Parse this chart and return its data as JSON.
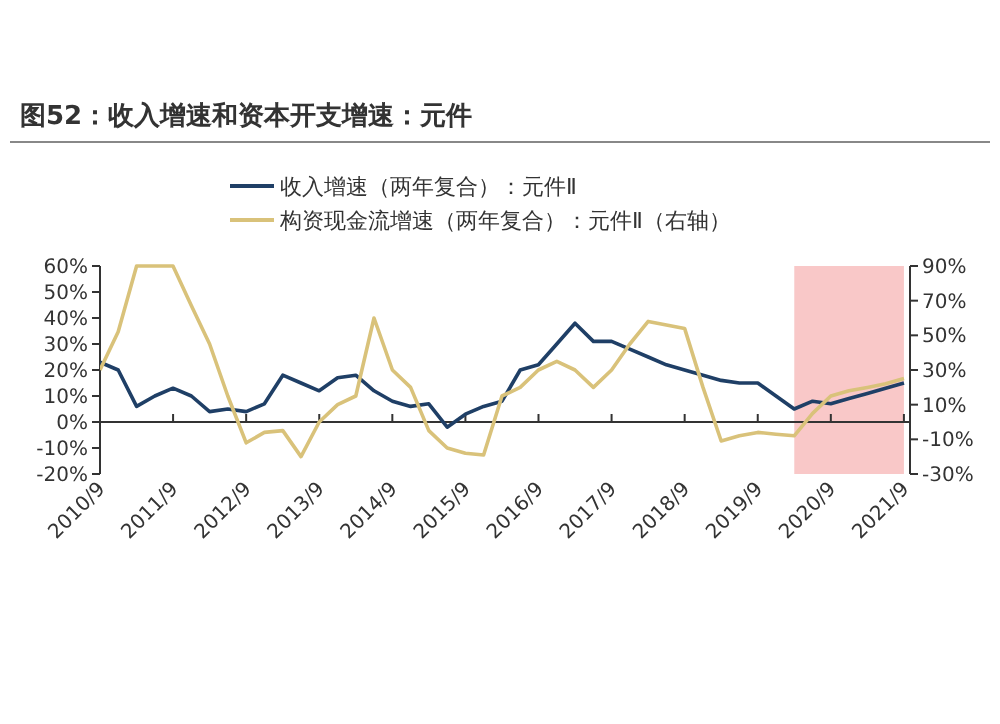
{
  "chart_data": {
    "type": "line",
    "title": "图52：收入增速和资本开支增速：元件",
    "legend": "top",
    "xlim": [
      "2010-09",
      "2021-10"
    ],
    "xticks": [
      {
        "value": "2010-09",
        "label": "2010/9"
      },
      {
        "value": "2011-09",
        "label": "2011/9"
      },
      {
        "value": "2012-09",
        "label": "2012/9"
      },
      {
        "value": "2013-09",
        "label": "2013/9"
      },
      {
        "value": "2014-09",
        "label": "2014/9"
      },
      {
        "value": "2015-09",
        "label": "2015/9"
      },
      {
        "value": "2016-09",
        "label": "2016/9"
      },
      {
        "value": "2017-09",
        "label": "2017/9"
      },
      {
        "value": "2018-09",
        "label": "2018/9"
      },
      {
        "value": "2019-09",
        "label": "2019/9"
      },
      {
        "value": "2020-09",
        "label": "2020/9"
      },
      {
        "value": "2021-09",
        "label": "2021/9"
      }
    ],
    "ylim": [
      -20,
      60
    ],
    "yticks": [
      {
        "value": 60,
        "label": "60%"
      },
      {
        "value": 50,
        "label": "50%"
      },
      {
        "value": 40,
        "label": "40%"
      },
      {
        "value": 30,
        "label": "30%"
      },
      {
        "value": 20,
        "label": "20%"
      },
      {
        "value": 10,
        "label": "10%"
      },
      {
        "value": 0,
        "label": "0%"
      },
      {
        "value": -10,
        "label": "-10%"
      },
      {
        "value": -20,
        "label": "-20%"
      }
    ],
    "y2lim": [
      -30,
      90
    ],
    "y2ticks": [
      {
        "value": 90,
        "label": "90%"
      },
      {
        "value": 70,
        "label": "70%"
      },
      {
        "value": 50,
        "label": "50%"
      },
      {
        "value": 30,
        "label": "30%"
      },
      {
        "value": 10,
        "label": "10%"
      },
      {
        "value": -10,
        "label": "-10%"
      },
      {
        "value": -30,
        "label": "-30%"
      }
    ],
    "bands": [
      {
        "axis": "x",
        "from": "2020-03",
        "to": "2021-09",
        "color": "#f9c8c8"
      }
    ],
    "x": [
      "2010-09",
      "2010-12",
      "2011-03",
      "2011-06",
      "2011-09",
      "2011-12",
      "2012-03",
      "2012-06",
      "2012-09",
      "2012-12",
      "2013-03",
      "2013-06",
      "2013-09",
      "2013-12",
      "2014-03",
      "2014-06",
      "2014-09",
      "2014-12",
      "2015-03",
      "2015-06",
      "2015-09",
      "2015-12",
      "2016-03",
      "2016-06",
      "2016-09",
      "2016-12",
      "2017-03",
      "2017-06",
      "2017-09",
      "2017-12",
      "2018-03",
      "2018-06",
      "2018-09",
      "2018-12",
      "2019-03",
      "2019-06",
      "2019-09",
      "2019-12",
      "2020-03",
      "2020-06",
      "2020-09",
      "2020-12",
      "2021-03",
      "2021-06",
      "2021-09"
    ],
    "series": [
      {
        "name": "收入增速（两年复合）：元件Ⅱ",
        "color": "#1f3f66",
        "values": [
          23,
          20,
          6,
          10,
          13,
          10,
          4,
          5,
          4,
          7,
          18,
          15,
          12,
          17,
          18,
          12,
          8,
          6,
          7,
          -2,
          3,
          6,
          8,
          20,
          22,
          30,
          38,
          31,
          31,
          28,
          25,
          22,
          20,
          18,
          16,
          15,
          15,
          10,
          5,
          8,
          7,
          9,
          11,
          13,
          15
        ]
      },
      {
        "name": "构资现金流增速（两年复合）：元件Ⅱ（右轴）",
        "color": "#d9c27a",
        "axis": "y2",
        "values": [
          30,
          52,
          90,
          90,
          90,
          67,
          45,
          15,
          -12,
          -6,
          -5,
          -20,
          0,
          10,
          15,
          60,
          30,
          20,
          -5,
          -15,
          -18,
          -19,
          15,
          20,
          30,
          35,
          30,
          20,
          30,
          45,
          58,
          56,
          54,
          20,
          -11,
          -8,
          -6,
          -7,
          -8,
          5,
          15,
          18,
          20,
          22,
          25
        ]
      }
    ]
  }
}
